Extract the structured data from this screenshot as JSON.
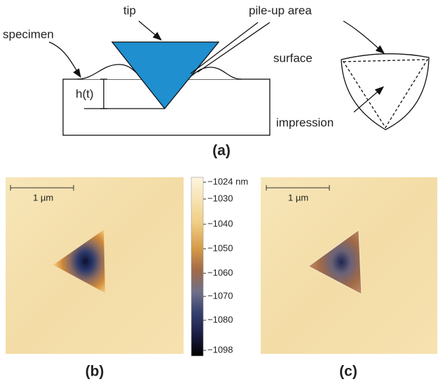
{
  "diagram": {
    "labels": {
      "tip": "tip",
      "pile_up": "pile-up area",
      "specimen": "specimen",
      "surface": "surface",
      "depth": "h(t)",
      "impression": "impression"
    },
    "caption": "(a)"
  },
  "panel_b": {
    "scale_bar": "1 µm",
    "caption": "(b)"
  },
  "colorbar": {
    "ticks": [
      "−1024 nm",
      "−1030",
      "−1040",
      "−1050",
      "−1060",
      "−1070",
      "−1080",
      "−1098"
    ]
  },
  "panel_c": {
    "scale_bar": "1 µm",
    "caption": "(c)"
  }
}
